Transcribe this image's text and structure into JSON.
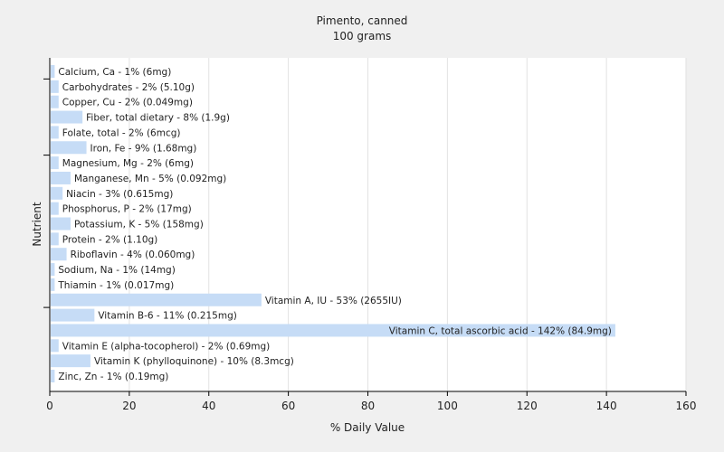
{
  "chart_data": {
    "type": "bar",
    "orientation": "horizontal",
    "title": "Pimento, canned",
    "subtitle": "100 grams",
    "xlabel": "% Daily Value",
    "ylabel": "Nutrient",
    "xlim": [
      0,
      160
    ],
    "xticks": [
      0,
      20,
      40,
      60,
      80,
      100,
      120,
      140,
      160
    ],
    "grid": true,
    "bar_color": "#c6dcf6",
    "categories": [
      "Calcium, Ca",
      "Carbohydrates",
      "Copper, Cu",
      "Fiber, total dietary",
      "Folate, total",
      "Iron, Fe",
      "Magnesium, Mg",
      "Manganese, Mn",
      "Niacin",
      "Phosphorus, P",
      "Potassium, K",
      "Protein",
      "Riboflavin",
      "Sodium, Na",
      "Thiamin",
      "Vitamin A, IU",
      "Vitamin B-6",
      "Vitamin C, total ascorbic acid",
      "Vitamin E (alpha-tocopherol)",
      "Vitamin K (phylloquinone)",
      "Zinc, Zn"
    ],
    "values": [
      1,
      2,
      2,
      8,
      2,
      9,
      2,
      5,
      3,
      2,
      5,
      2,
      4,
      1,
      1,
      53,
      11,
      142,
      2,
      10,
      1
    ],
    "labels": [
      "Calcium, Ca - 1% (6mg)",
      "Carbohydrates - 2% (5.10g)",
      "Copper, Cu - 2% (0.049mg)",
      "Fiber, total dietary - 8% (1.9g)",
      "Folate, total - 2% (6mcg)",
      "Iron, Fe - 9% (1.68mg)",
      "Magnesium, Mg - 2% (6mg)",
      "Manganese, Mn - 5% (0.092mg)",
      "Niacin - 3% (0.615mg)",
      "Phosphorus, P - 2% (17mg)",
      "Potassium, K - 5% (158mg)",
      "Protein - 2% (1.10g)",
      "Riboflavin - 4% (0.060mg)",
      "Sodium, Na - 1% (14mg)",
      "Thiamin - 1% (0.017mg)",
      "Vitamin A, IU - 53% (2655IU)",
      "Vitamin B-6 - 11% (0.215mg)",
      "Vitamin C, total ascorbic acid - 142% (84.9mg)",
      "Vitamin E (alpha-tocopherol) - 2% (0.69mg)",
      "Vitamin K (phylloquinone) - 10% (8.3mcg)",
      "Zinc, Zn - 1% (0.19mg)"
    ]
  }
}
